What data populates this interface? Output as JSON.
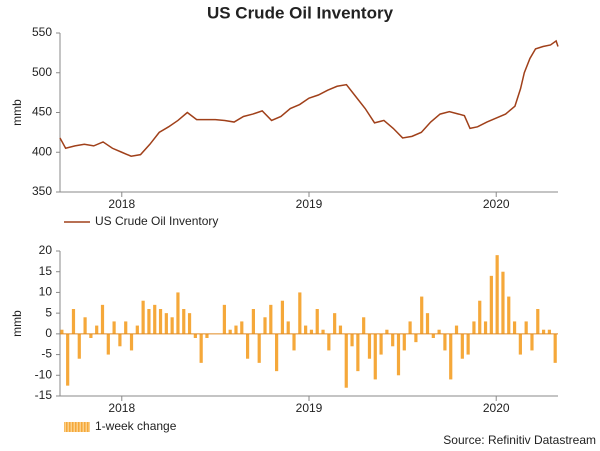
{
  "chart_data": [
    {
      "type": "line",
      "title": "US Crude Oil Inventory",
      "y_label": "mmb",
      "x": [
        2017.67,
        2017.7,
        2017.75,
        2017.8,
        2017.85,
        2017.9,
        2017.95,
        2018.0,
        2018.05,
        2018.1,
        2018.15,
        2018.2,
        2018.25,
        2018.3,
        2018.35,
        2018.4,
        2018.45,
        2018.5,
        2018.55,
        2018.6,
        2018.65,
        2018.7,
        2018.75,
        2018.8,
        2018.85,
        2018.9,
        2018.95,
        2019.0,
        2019.05,
        2019.1,
        2019.15,
        2019.2,
        2019.25,
        2019.3,
        2019.35,
        2019.4,
        2019.45,
        2019.5,
        2019.55,
        2019.6,
        2019.65,
        2019.7,
        2019.75,
        2019.8,
        2019.83,
        2019.86,
        2019.9,
        2019.95,
        2020.0,
        2020.05,
        2020.1,
        2020.13,
        2020.15,
        2020.18,
        2020.21,
        2020.25,
        2020.29,
        2020.32,
        2020.33
      ],
      "series": [
        {
          "name": "US Crude Oil Inventory",
          "color": "#a0401a",
          "values": [
            418,
            405,
            408,
            410,
            408,
            413,
            405,
            400,
            395,
            397,
            410,
            425,
            432,
            440,
            450,
            441,
            441,
            441,
            440,
            438,
            445,
            448,
            452,
            440,
            445,
            455,
            460,
            468,
            472,
            478,
            483,
            485,
            470,
            455,
            437,
            440,
            430,
            418,
            420,
            425,
            438,
            448,
            451,
            448,
            446,
            430,
            432,
            438,
            443,
            448,
            458,
            480,
            500,
            518,
            530,
            533,
            535,
            540,
            533
          ]
        }
      ],
      "xlim": [
        2017.67,
        2020.33
      ],
      "xticks": [
        2018,
        2019,
        2020
      ],
      "ylim": [
        350,
        550
      ],
      "yticks": [
        350,
        400,
        450,
        500,
        550
      ]
    },
    {
      "type": "bar",
      "y_label": "mmb",
      "source": "Source: Refinitiv Datastream",
      "x": [
        2017.68,
        2017.711,
        2017.742,
        2017.773,
        2017.804,
        2017.835,
        2017.866,
        2017.897,
        2017.928,
        2017.959,
        2017.99,
        2018.021,
        2018.052,
        2018.083,
        2018.114,
        2018.145,
        2018.176,
        2018.207,
        2018.238,
        2018.269,
        2018.3,
        2018.331,
        2018.362,
        2018.393,
        2018.424,
        2018.455,
        2018.486,
        2018.517,
        2018.548,
        2018.579,
        2018.61,
        2018.641,
        2018.672,
        2018.703,
        2018.734,
        2018.765,
        2018.796,
        2018.827,
        2018.858,
        2018.889,
        2018.92,
        2018.951,
        2018.982,
        2019.013,
        2019.044,
        2019.075,
        2019.106,
        2019.137,
        2019.168,
        2019.199,
        2019.23,
        2019.261,
        2019.292,
        2019.323,
        2019.354,
        2019.385,
        2019.416,
        2019.447,
        2019.478,
        2019.509,
        2019.54,
        2019.571,
        2019.602,
        2019.633,
        2019.664,
        2019.695,
        2019.726,
        2019.757,
        2019.788,
        2019.819,
        2019.85,
        2019.881,
        2019.912,
        2019.943,
        2019.974,
        2020.005,
        2020.036,
        2020.067,
        2020.098,
        2020.129,
        2020.16,
        2020.191,
        2020.222,
        2020.253,
        2020.284,
        2020.315
      ],
      "series": [
        {
          "name": "1-week change",
          "color": "#f5a83a",
          "values": [
            1,
            -12.5,
            6,
            -6,
            4,
            -1,
            2,
            7,
            -5,
            3,
            -3,
            3,
            -4,
            2,
            8,
            6,
            7,
            6,
            5,
            4,
            10,
            6,
            5,
            -1,
            -7,
            -1,
            0,
            0,
            7,
            1,
            2,
            3,
            -6,
            6,
            -7,
            4,
            7,
            -9,
            8,
            3,
            -4,
            10,
            2,
            1,
            6,
            1,
            -4,
            5,
            2,
            -13,
            -3,
            -9,
            4,
            -6,
            -11,
            -5,
            1,
            -3,
            -10,
            -4,
            3,
            -2,
            9,
            5,
            -1,
            1,
            -4,
            -11,
            2,
            -6,
            -5,
            3,
            8,
            3,
            14,
            19,
            15,
            9,
            3,
            -5,
            3,
            -4,
            6,
            1,
            1,
            -7
          ]
        }
      ],
      "xlim": [
        2017.67,
        2020.33
      ],
      "xticks": [
        2018,
        2019,
        2020
      ],
      "ylim": [
        -15,
        20
      ],
      "yticks": [
        -15,
        -10,
        -5,
        0,
        5,
        10,
        15,
        20
      ]
    }
  ]
}
